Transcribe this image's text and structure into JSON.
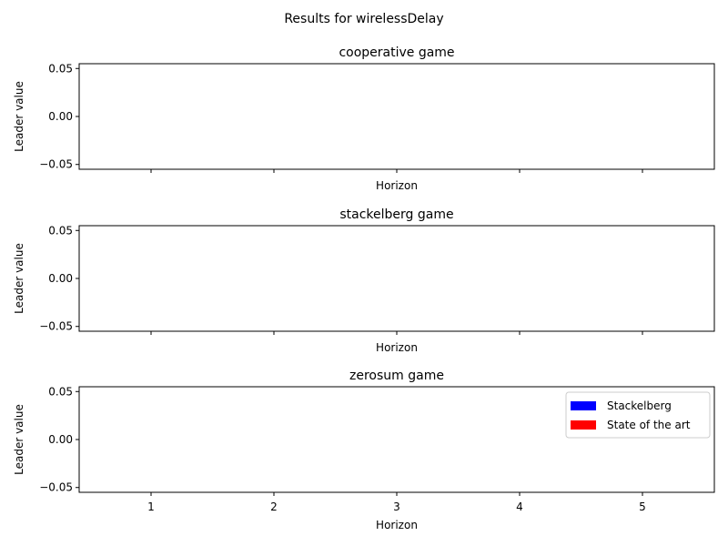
{
  "suptitle": "Results for wirelessDelay",
  "chart_data": [
    {
      "type": "bar",
      "title": "cooperative game",
      "xlabel": "Horizon",
      "ylabel": "Leader value",
      "categories": [
        "1",
        "2",
        "3",
        "4",
        "5"
      ],
      "ylim": [
        -0.055,
        0.055
      ],
      "yticks": [
        "0.05",
        "0.00",
        "−0.05"
      ],
      "show_xtick_labels": false,
      "series": [
        {
          "name": "Stackelberg",
          "values": [
            0,
            0,
            0,
            0,
            0
          ],
          "color": "#0000ff"
        },
        {
          "name": "State of the art",
          "values": [
            0,
            0,
            0,
            0,
            0
          ],
          "color": "#ff0000"
        }
      ],
      "legend": null,
      "grid": false
    },
    {
      "type": "bar",
      "title": "stackelberg game",
      "xlabel": "Horizon",
      "ylabel": "Leader value",
      "categories": [
        "1",
        "2",
        "3",
        "4",
        "5"
      ],
      "ylim": [
        -0.055,
        0.055
      ],
      "yticks": [
        "0.05",
        "0.00",
        "−0.05"
      ],
      "show_xtick_labels": false,
      "series": [
        {
          "name": "Stackelberg",
          "values": [
            0,
            0,
            0,
            0,
            0
          ],
          "color": "#0000ff"
        },
        {
          "name": "State of the art",
          "values": [
            0,
            0,
            0,
            0,
            0
          ],
          "color": "#ff0000"
        }
      ],
      "legend": null,
      "grid": false
    },
    {
      "type": "bar",
      "title": "zerosum game",
      "xlabel": "Horizon",
      "ylabel": "Leader value",
      "categories": [
        "1",
        "2",
        "3",
        "4",
        "5"
      ],
      "ylim": [
        -0.055,
        0.055
      ],
      "yticks": [
        "0.05",
        "0.00",
        "−0.05"
      ],
      "show_xtick_labels": true,
      "series": [
        {
          "name": "Stackelberg",
          "values": [
            0,
            0,
            0,
            0,
            0
          ],
          "color": "#0000ff"
        },
        {
          "name": "State of the art",
          "values": [
            0,
            0,
            0,
            0,
            0
          ],
          "color": "#ff0000"
        }
      ],
      "legend": "top-right",
      "grid": false
    }
  ]
}
